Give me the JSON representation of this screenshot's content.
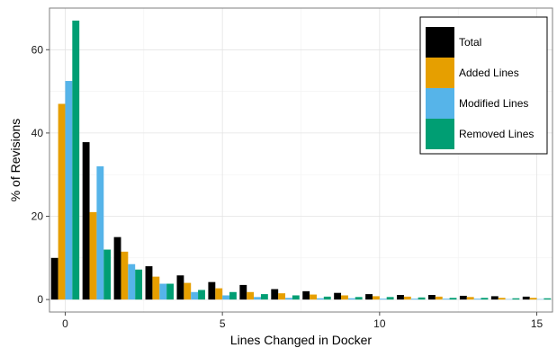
{
  "chart_data": {
    "type": "bar",
    "xlabel": "Lines Changed in Docker",
    "ylabel": "% of Revisions",
    "xlim": [
      -0.5,
      15.5
    ],
    "ylim": [
      -3,
      70
    ],
    "xticks": [
      0,
      5,
      10,
      15
    ],
    "yticks": [
      0,
      20,
      40,
      60
    ],
    "grid": true,
    "legend_position": "top-right",
    "categories": [
      0,
      1,
      2,
      3,
      4,
      5,
      6,
      7,
      8,
      9,
      10,
      11,
      12,
      13,
      14,
      15
    ],
    "series": [
      {
        "name": "Total",
        "color": "#000000",
        "values": [
          10,
          37.8,
          15,
          8,
          5.8,
          4.2,
          3.5,
          2.5,
          2,
          1.6,
          1.3,
          1.1,
          1.1,
          0.9,
          0.8,
          0.7
        ]
      },
      {
        "name": "Added Lines",
        "color": "#E69F00",
        "values": [
          47,
          21,
          11.5,
          5.5,
          4,
          2.7,
          1.8,
          1.5,
          1.2,
          1,
          0.8,
          0.7,
          0.7,
          0.6,
          0.4,
          0.4
        ]
      },
      {
        "name": "Modified Lines",
        "color": "#56B4E9",
        "values": [
          52.5,
          32,
          8.5,
          3.8,
          1.8,
          1,
          0.6,
          0.4,
          0.3,
          0.3,
          0.2,
          0.2,
          0.2,
          0.2,
          0.1,
          0.1
        ]
      },
      {
        "name": "Removed Lines",
        "color": "#009E73",
        "values": [
          67,
          12,
          7.2,
          3.8,
          2.3,
          1.8,
          1.3,
          1,
          0.7,
          0.6,
          0.6,
          0.5,
          0.4,
          0.4,
          0.3,
          0.3
        ]
      }
    ]
  }
}
